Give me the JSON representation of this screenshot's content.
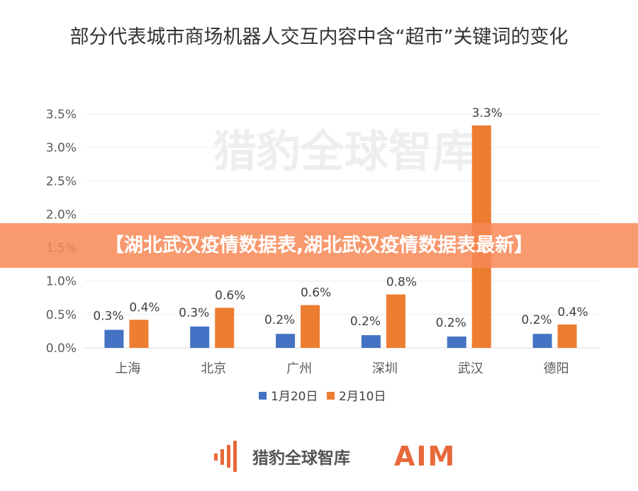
{
  "chart_data": {
    "type": "bar",
    "title": "部分代表城市商场机器人交互内容中含“超市”关键词的变化",
    "categories": [
      "上海",
      "北京",
      "广州",
      "深圳",
      "武汉",
      "德阳"
    ],
    "ylim": [
      0,
      3.5
    ],
    "yticks": [
      "0.0%",
      "0.5%",
      "1.0%",
      "1.5%",
      "2.0%",
      "2.5%",
      "3.0%",
      "3.5%"
    ],
    "grid": true,
    "legend_position": "bottom",
    "series": [
      {
        "name": "1月20日",
        "color": "#4472c4",
        "values": [
          0.27,
          0.32,
          0.21,
          0.19,
          0.17,
          0.21
        ],
        "labels": [
          "0.3%",
          "0.3%",
          "0.2%",
          "0.2%",
          "0.2%",
          "0.2%"
        ]
      },
      {
        "name": "2月10日",
        "color": "#ed7d31",
        "values": [
          0.42,
          0.6,
          0.64,
          0.8,
          3.33,
          0.35
        ],
        "labels": [
          "0.4%",
          "0.6%",
          "0.6%",
          "0.8%",
          "3.3%",
          "0.4%"
        ]
      }
    ]
  },
  "banner": "【湖北武汉疫情数据表,湖北武汉疫情数据表最新】",
  "logo": {
    "brand": "猎豹全球智库",
    "aim": "AIM",
    "watermark": "猎豹全球智库"
  }
}
